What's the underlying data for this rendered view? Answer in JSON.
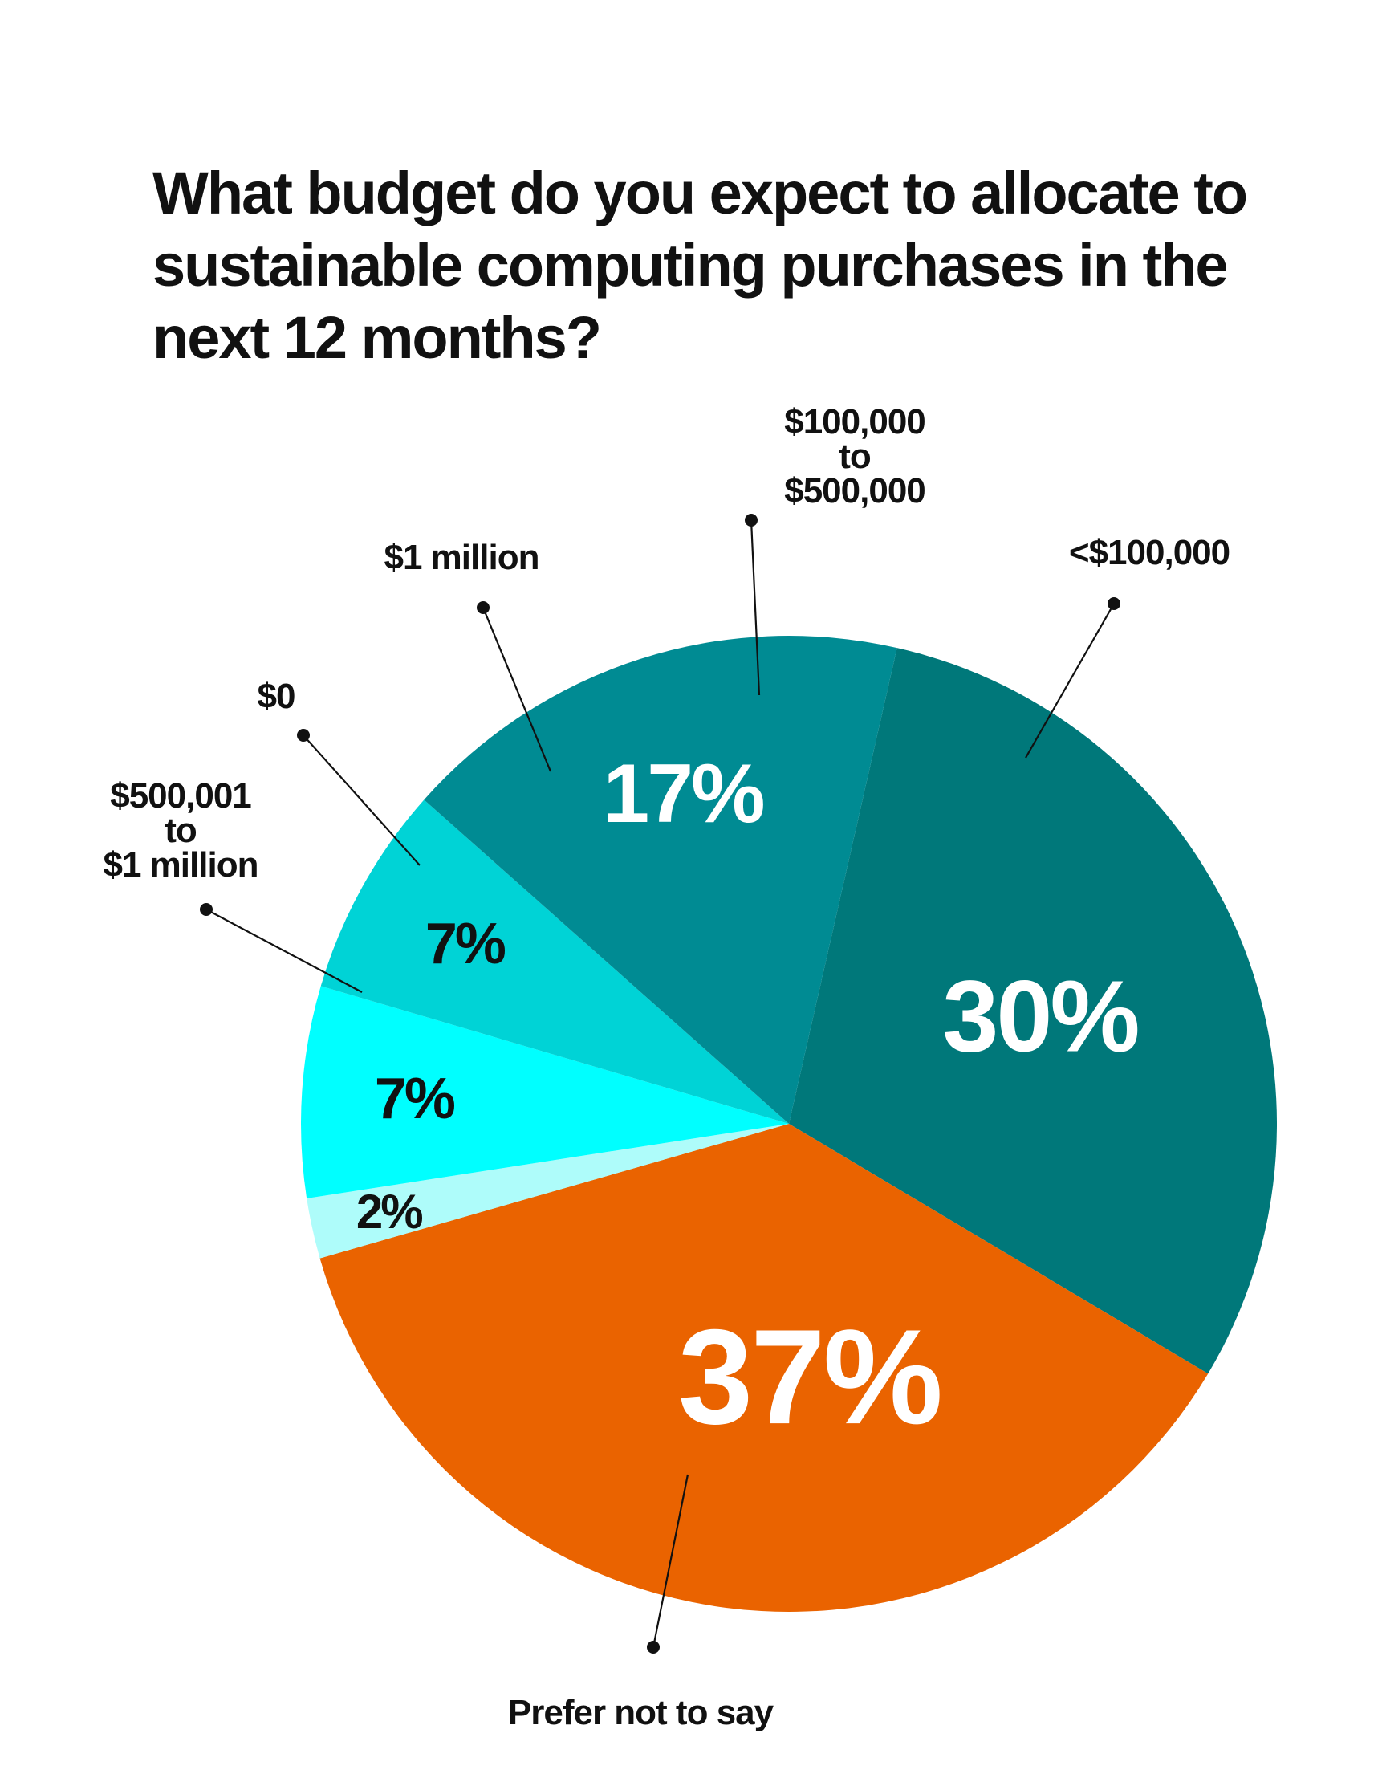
{
  "chart_data": {
    "type": "pie",
    "title_lines": [
      "What budget do you expect to allocate to",
      "sustainable computing purchases in the",
      "next 12 months?"
    ],
    "slices": [
      {
        "key": "lt100k",
        "label_lines": [
          "<$100,000"
        ],
        "value": 30,
        "value_label": "30%",
        "color": "#00787A",
        "text_color": "#ffffff"
      },
      {
        "key": "prefer",
        "label_lines": [
          "Prefer not to say"
        ],
        "value": 37,
        "value_label": "37%",
        "color": "#EA6300",
        "text_color": "#ffffff"
      },
      {
        "key": "500k1m",
        "label_lines": [
          "$500,001",
          "to",
          "$1 million"
        ],
        "value": 2,
        "value_label": "2%",
        "color": "#AEFCFA",
        "text_color": "#111111"
      },
      {
        "key": "zero",
        "label_lines": [
          "$0"
        ],
        "value": 7,
        "value_label": "7%",
        "color": "#00FFFF",
        "text_color": "#111111"
      },
      {
        "key": "1m",
        "label_lines": [
          "$1 million"
        ],
        "value": 7,
        "value_label": "7%",
        "color": "#00D3D6",
        "text_color": "#111111"
      },
      {
        "key": "100k500k",
        "label_lines": [
          "$100,000",
          "to",
          "$500,000"
        ],
        "value": 17,
        "value_label": "17%",
        "color": "#008B93",
        "text_color": "#ffffff"
      }
    ]
  }
}
